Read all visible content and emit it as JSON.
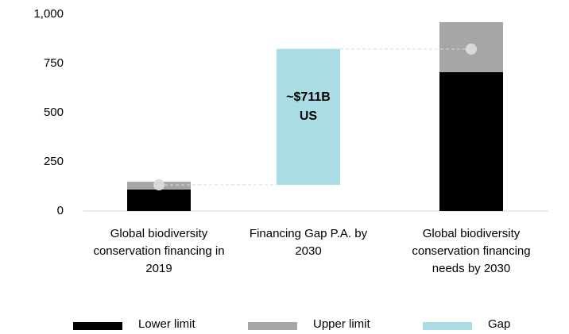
{
  "chart_data": {
    "type": "floating-stacked-bar",
    "categories": [
      "Global biodiversity conservation financing in 2019",
      "Financing Gap P.A. by 2030",
      "Global biodiversity conservation financing needs by 2030"
    ],
    "series": [
      {
        "name": "Lower limit",
        "color": "#000000",
        "values": [
          110,
          null,
          706
        ]
      },
      {
        "name": "Upper limit",
        "color": "#a6a6a6",
        "values": [
          39,
          null,
          254
        ]
      },
      {
        "name": "Gap",
        "color": "#a9dde3",
        "starts": [
          null,
          133,
          null
        ],
        "values": [
          null,
          691,
          null
        ]
      }
    ],
    "markers": [
      133,
      null,
      823
    ],
    "marker_color": "#d9d9d9",
    "annotation": "~$711B US",
    "ylim": [
      0,
      1000
    ],
    "yticks": [
      0,
      250,
      500,
      750,
      {
        "value": 1000,
        "label": "1,000"
      }
    ]
  }
}
